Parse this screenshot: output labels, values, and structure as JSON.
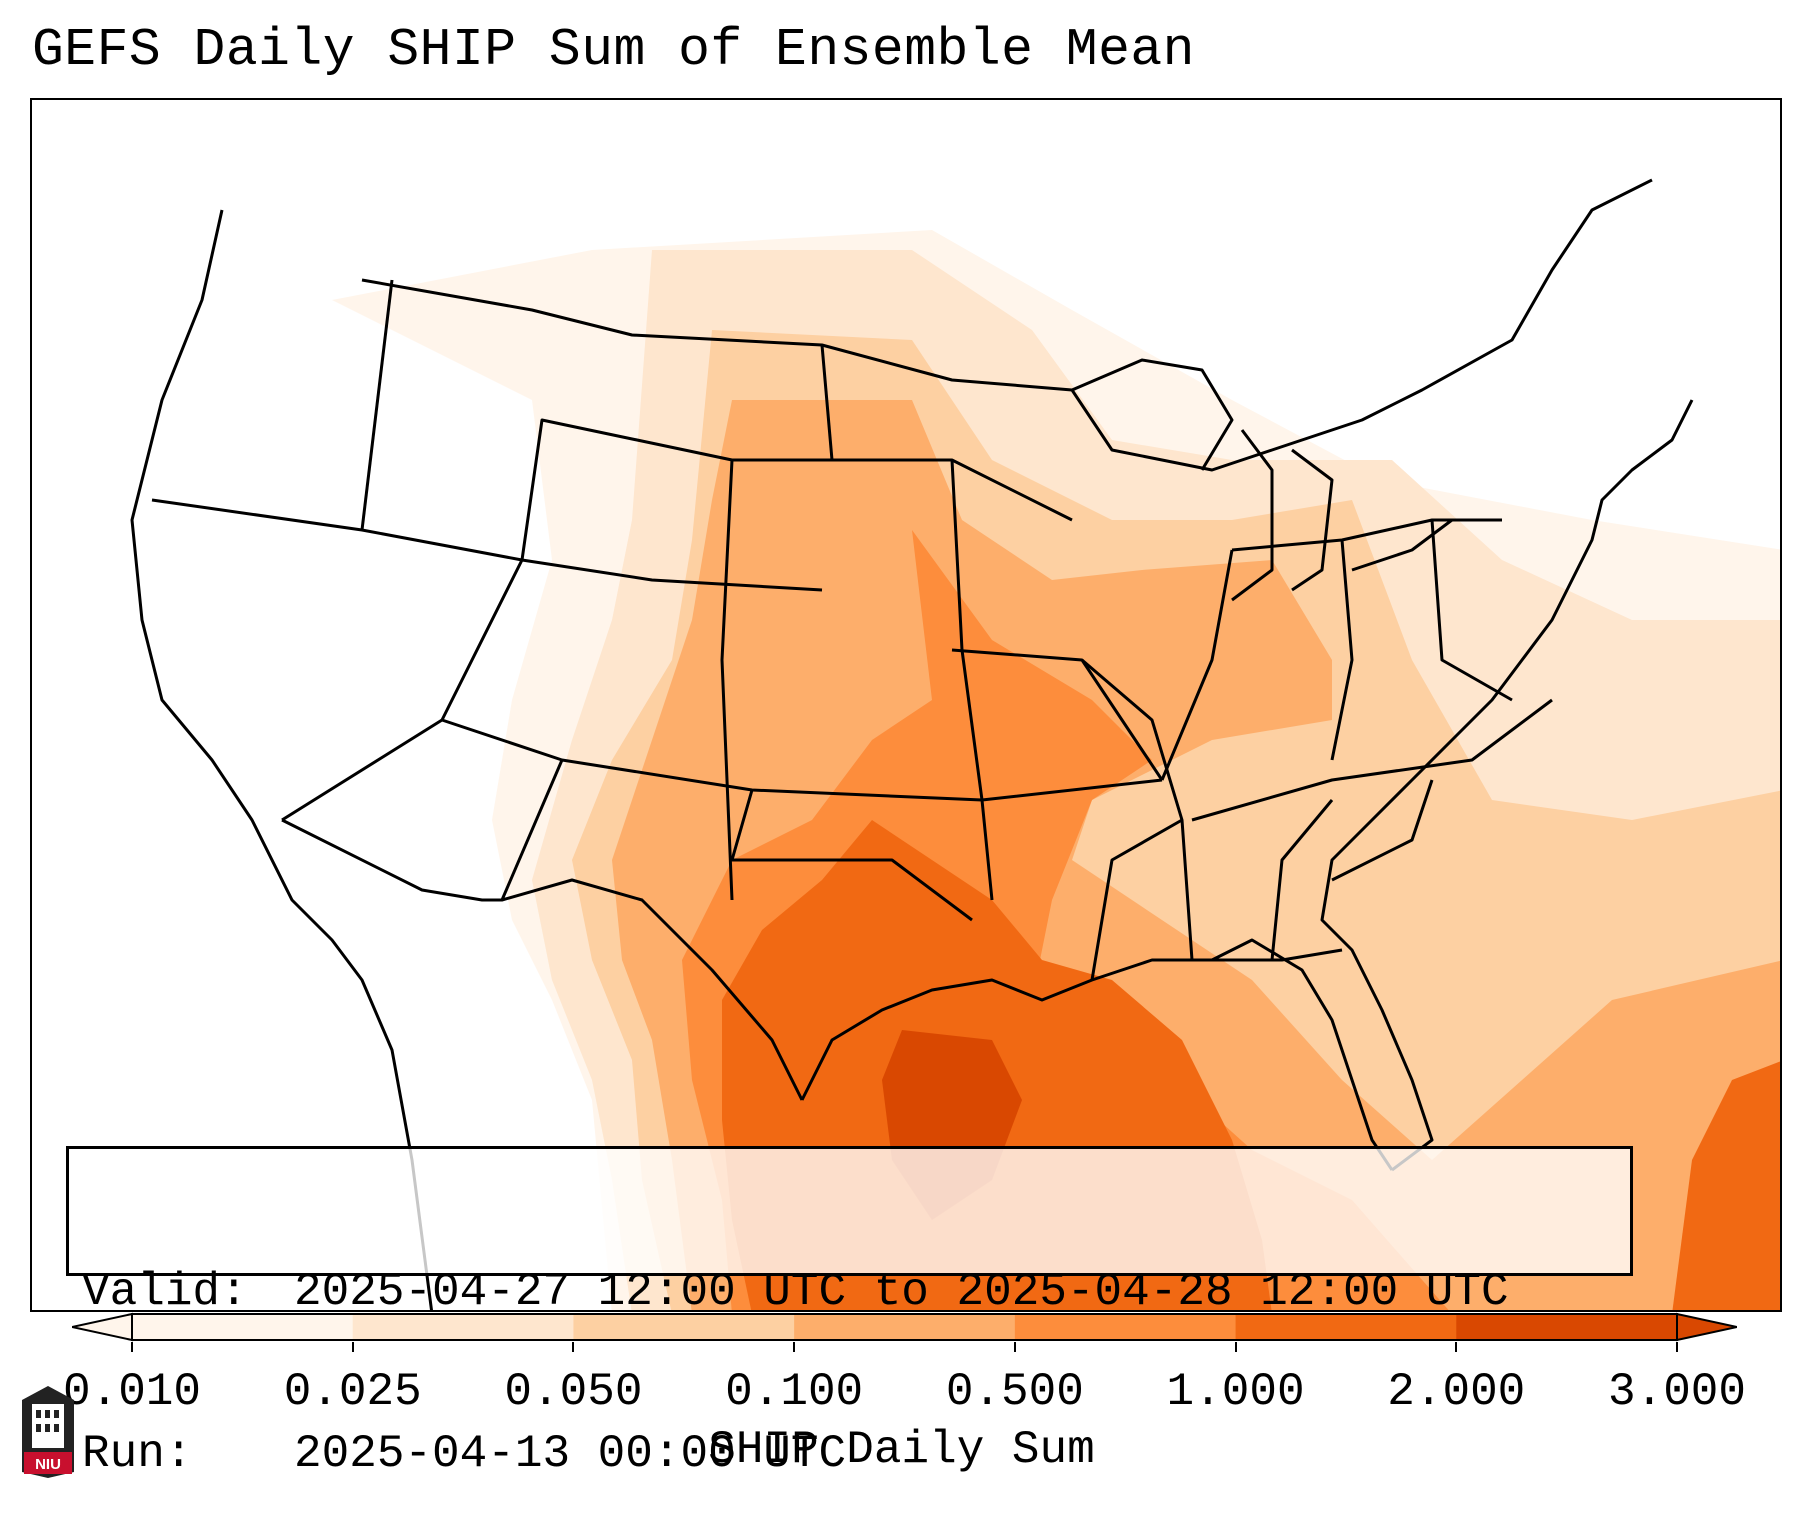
{
  "title": "GEFS Daily SHIP Sum of Ensemble Mean",
  "map": {
    "region": "Contiguous United States",
    "projection": "lambert-conformal"
  },
  "info": {
    "valid_label": "Valid:",
    "valid_value": "2025-04-27 12:00 UTC to 2025-04-28 12:00 UTC",
    "run_label": "Run:",
    "run_value": "2025-04-13 00:00 UTC"
  },
  "colorbar": {
    "label": "SHIP Daily Sum",
    "ticks": [
      "0.010",
      "0.025",
      "0.050",
      "0.100",
      "0.500",
      "1.000",
      "2.000",
      "3.000"
    ],
    "colors": [
      "#fff5eb",
      "#fee6ce",
      "#fdd0a2",
      "#fdae6b",
      "#fd8d3c",
      "#f16913",
      "#d94801"
    ],
    "extend": "both"
  },
  "logo": {
    "text": "NIU"
  }
}
